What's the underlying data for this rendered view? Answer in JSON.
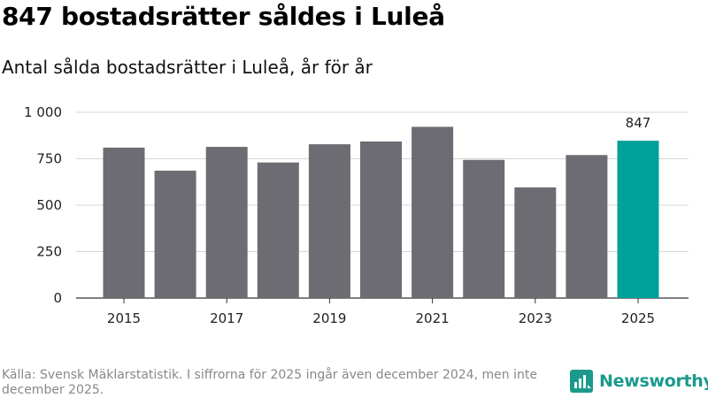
{
  "header": {
    "title": "847 bostadsrätter såldes i Luleå",
    "subtitle": "Antal sålda bostadsrätter i Luleå, år för år"
  },
  "chart_data": {
    "type": "bar",
    "title": "847 bostadsrätter såldes i Luleå",
    "subtitle": "Antal sålda bostadsrätter i Luleå, år för år",
    "xlabel": "",
    "ylabel": "",
    "categories": [
      "2015",
      "2016",
      "2017",
      "2018",
      "2019",
      "2020",
      "2021",
      "2022",
      "2023",
      "2024",
      "2025"
    ],
    "values": [
      810,
      686,
      814,
      730,
      828,
      843,
      922,
      744,
      596,
      770,
      847
    ],
    "x_tick_labels": [
      "2015",
      "2017",
      "2019",
      "2021",
      "2023",
      "2025"
    ],
    "y_ticks": [
      0,
      250,
      500,
      750,
      1000
    ],
    "y_tick_labels": [
      "0",
      "250",
      "500",
      "750",
      "1 000"
    ],
    "ylim": [
      0,
      1000
    ],
    "grid": true,
    "highlight_index": 10,
    "highlight_label": "847",
    "bar_color": "#6d6c72",
    "highlight_color": "#00a19a"
  },
  "footer": {
    "source": "Källa: Svensk Mäklarstatistik. I siffrorna för 2025 ingår även december 2024, men inte december 2025.",
    "brand_name": "Newsworthy",
    "brand_icon": "newsworthy-logo-icon",
    "brand_color": "#1b9a8c"
  }
}
